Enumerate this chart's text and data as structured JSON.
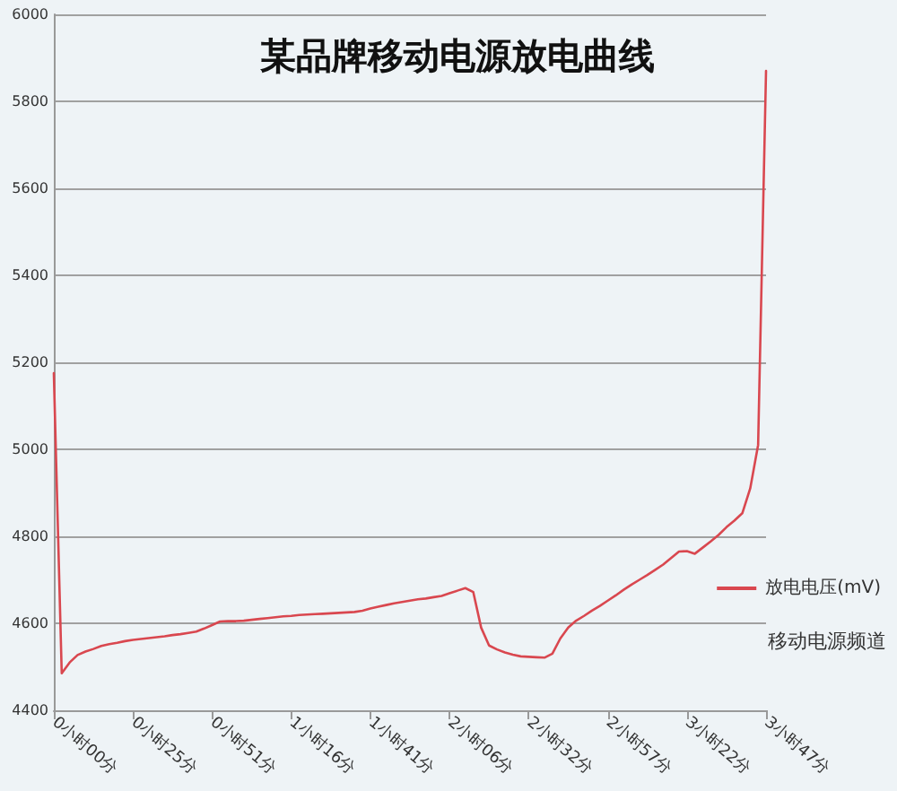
{
  "chart_data": {
    "type": "line",
    "title": "某品牌移动电源放电曲线",
    "categories": [
      "0小时00分",
      null,
      null,
      null,
      null,
      null,
      null,
      null,
      null,
      null,
      "0小时25分",
      null,
      null,
      null,
      null,
      null,
      null,
      null,
      null,
      null,
      "0小时51分",
      null,
      null,
      null,
      null,
      null,
      null,
      null,
      null,
      null,
      "1小时16分",
      null,
      null,
      null,
      null,
      null,
      null,
      null,
      null,
      null,
      "1小时41分",
      null,
      null,
      null,
      null,
      null,
      null,
      null,
      null,
      null,
      "2小时06分",
      null,
      null,
      null,
      null,
      null,
      null,
      null,
      null,
      null,
      "2小时32分",
      null,
      null,
      null,
      null,
      null,
      null,
      null,
      null,
      null,
      "2小时57分",
      null,
      null,
      null,
      null,
      null,
      null,
      null,
      null,
      null,
      "3小时22分",
      null,
      null,
      null,
      null,
      null,
      null,
      null,
      null,
      null,
      "3小时47分"
    ],
    "series": [
      {
        "name": "放电电压(mV)",
        "color": "#d9474f",
        "values": [
          5175,
          4485,
          4510,
          4527,
          4535,
          4541,
          4548,
          4552,
          4555,
          4559,
          4562,
          4564,
          4566,
          4568,
          4570,
          4573,
          4575,
          4578,
          4581,
          4588,
          4596,
          4604,
          4605,
          4605,
          4606,
          4608,
          4610,
          4612,
          4614,
          4616,
          4617,
          4619,
          4620,
          4621,
          4622,
          4623,
          4624,
          4625,
          4626,
          4629,
          4634,
          4638,
          4642,
          4646,
          4649,
          4652,
          4655,
          4657,
          4660,
          4663,
          4669,
          4675,
          4681,
          4672,
          4590,
          4549,
          4540,
          4533,
          4528,
          4524,
          4523,
          4522,
          4521,
          4530,
          4565,
          4590,
          4606,
          4617,
          4629,
          4640,
          4652,
          4664,
          4677,
          4689,
          4700,
          4711,
          4723,
          4735,
          4750,
          4765,
          4766,
          4760,
          4774,
          4788,
          4803,
          4821,
          4836,
          4853,
          4910,
          5010,
          5870
        ]
      }
    ],
    "ylim": [
      4400,
      6000
    ],
    "yticks": [
      4400,
      4600,
      4800,
      5000,
      5200,
      5400,
      5600,
      5800,
      6000
    ],
    "grid": "y",
    "legend": "right",
    "marker": "none",
    "line_style": "solid",
    "annotations": [
      "移动电源频道"
    ]
  }
}
